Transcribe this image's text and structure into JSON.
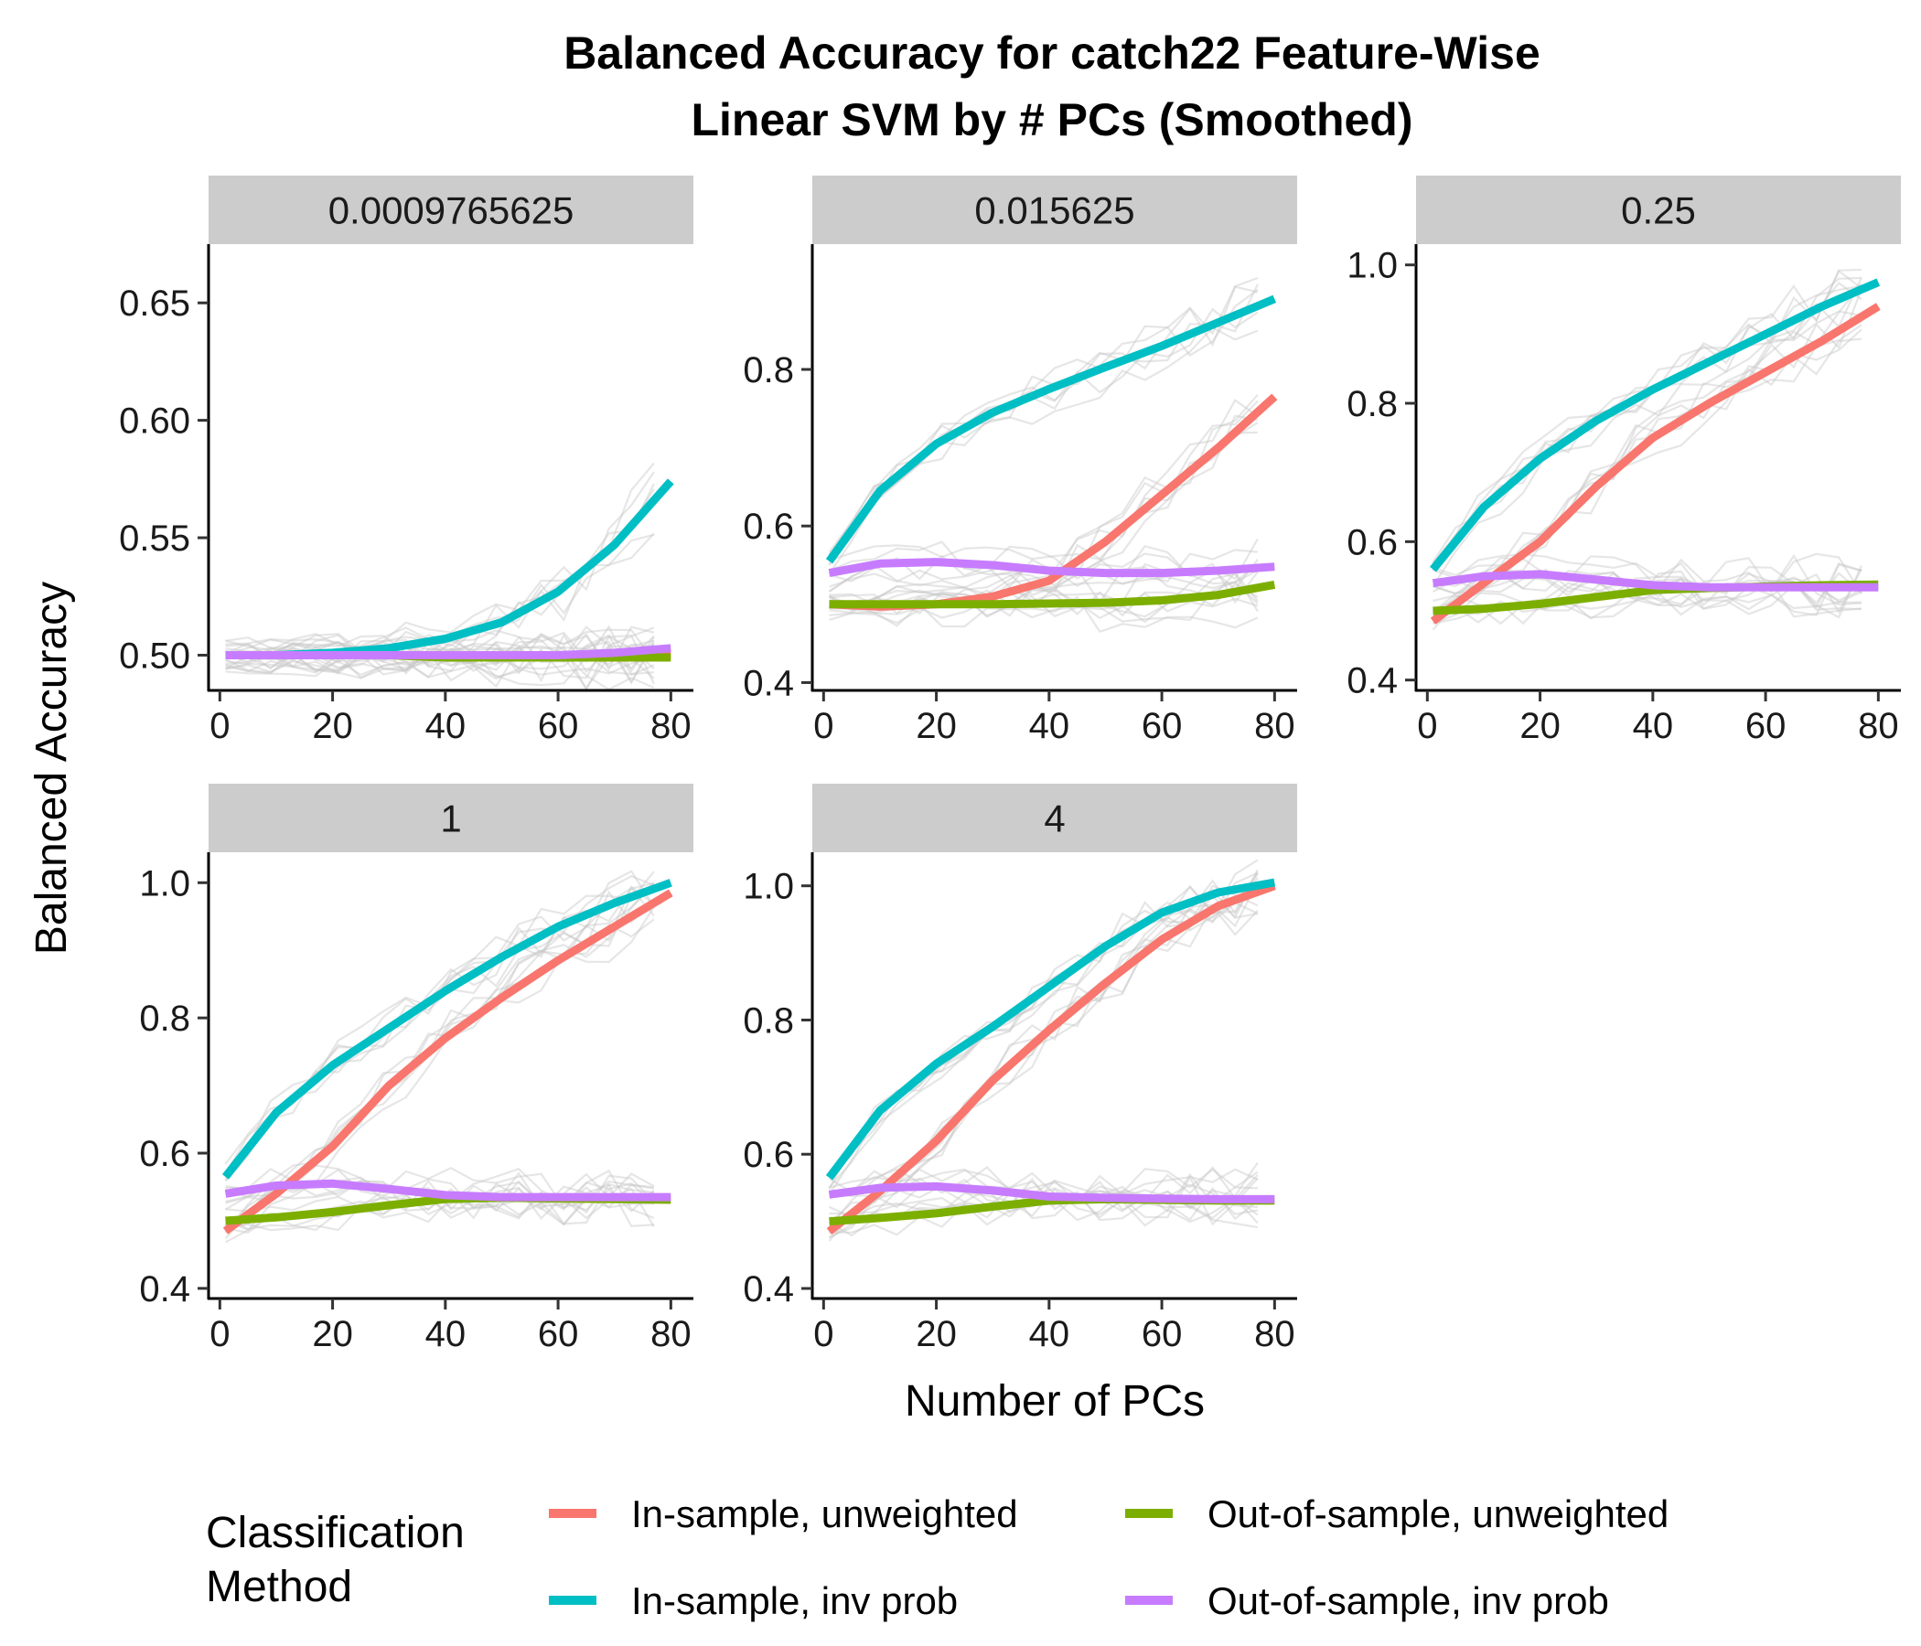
{
  "chart_data": {
    "type": "line",
    "title": "Balanced Accuracy for catch22 Feature-Wise",
    "subtitle": "Linear SVM by # PCs (Smoothed)",
    "xlabel": "Number of PCs",
    "ylabel": "Balanced Accuracy",
    "x_ticks": [
      0,
      20,
      40,
      60,
      80
    ],
    "xlim": [
      -2,
      84
    ],
    "legend": {
      "title_line1": "Classification",
      "title_line2": "Method",
      "placement": "bottom",
      "entries": [
        {
          "label": "In-sample, unweighted",
          "color": "#F8766D"
        },
        {
          "label": "In-sample, inv prob",
          "color": "#00BFC4"
        },
        {
          "label": "Out-of-sample, unweighted",
          "color": "#7CAE00"
        },
        {
          "label": "Out-of-sample, inv prob",
          "color": "#C77CFF"
        }
      ]
    },
    "background_lines": "light grey individual traces behind the smoothed curves",
    "facets": [
      {
        "label": "0.0009765625",
        "ylim": [
          0.485,
          0.675
        ],
        "y_ticks": [
          0.5,
          0.55,
          0.6,
          0.65
        ],
        "y_tick_labels": [
          "0.50",
          "0.55",
          "0.60",
          "0.65"
        ],
        "series": [
          {
            "name": "In-sample, unweighted",
            "x": [
              1,
              10,
              20,
              30,
              40,
              50,
              60,
              70,
              80
            ],
            "values": [
              0.5,
              0.5,
              0.5,
              0.5,
              0.5,
              0.5,
              0.5,
              0.5,
              0.5
            ]
          },
          {
            "name": "In-sample, inv prob",
            "x": [
              1,
              10,
              20,
              30,
              40,
              50,
              60,
              70,
              80
            ],
            "values": [
              0.5,
              0.5,
              0.501,
              0.503,
              0.507,
              0.514,
              0.527,
              0.547,
              0.574
            ]
          },
          {
            "name": "Out-of-sample, unweighted",
            "x": [
              1,
              10,
              20,
              30,
              40,
              50,
              60,
              70,
              80
            ],
            "values": [
              0.5,
              0.5,
              0.5,
              0.5,
              0.499,
              0.499,
              0.499,
              0.499,
              0.499
            ]
          },
          {
            "name": "Out-of-sample, inv prob",
            "x": [
              1,
              10,
              20,
              30,
              40,
              50,
              60,
              70,
              80
            ],
            "values": [
              0.5,
              0.5,
              0.5,
              0.5,
              0.5,
              0.5,
              0.5,
              0.501,
              0.503
            ]
          }
        ]
      },
      {
        "label": "0.015625",
        "ylim": [
          0.39,
          0.96
        ],
        "y_ticks": [
          0.4,
          0.6,
          0.8
        ],
        "y_tick_labels": [
          "0.4",
          "0.6",
          "0.8"
        ],
        "series": [
          {
            "name": "In-sample, unweighted",
            "x": [
              1,
              10,
              20,
              30,
              40,
              50,
              60,
              70,
              80
            ],
            "values": [
              0.5,
              0.497,
              0.5,
              0.51,
              0.53,
              0.58,
              0.64,
              0.7,
              0.765
            ]
          },
          {
            "name": "In-sample, inv prob",
            "x": [
              1,
              10,
              20,
              30,
              40,
              50,
              60,
              70,
              80
            ],
            "values": [
              0.555,
              0.645,
              0.705,
              0.745,
              0.775,
              0.803,
              0.83,
              0.86,
              0.89
            ]
          },
          {
            "name": "Out-of-sample, unweighted",
            "x": [
              1,
              10,
              20,
              30,
              40,
              50,
              60,
              70,
              80
            ],
            "values": [
              0.5,
              0.5,
              0.5,
              0.5,
              0.501,
              0.502,
              0.505,
              0.512,
              0.525
            ]
          },
          {
            "name": "Out-of-sample, inv prob",
            "x": [
              1,
              10,
              20,
              30,
              40,
              50,
              60,
              70,
              80
            ],
            "values": [
              0.54,
              0.552,
              0.554,
              0.55,
              0.543,
              0.54,
              0.54,
              0.543,
              0.548
            ]
          }
        ]
      },
      {
        "label": "0.25",
        "ylim": [
          0.385,
          1.03
        ],
        "y_ticks": [
          0.4,
          0.6,
          0.8,
          1.0
        ],
        "y_tick_labels": [
          "0.4",
          "0.6",
          "0.8",
          "1.0"
        ],
        "series": [
          {
            "name": "In-sample, unweighted",
            "x": [
              1,
              10,
              20,
              30,
              40,
              50,
              60,
              70,
              80
            ],
            "values": [
              0.485,
              0.54,
              0.6,
              0.68,
              0.75,
              0.8,
              0.845,
              0.89,
              0.94
            ]
          },
          {
            "name": "In-sample, inv prob",
            "x": [
              1,
              10,
              20,
              30,
              40,
              50,
              60,
              70,
              80
            ],
            "values": [
              0.56,
              0.65,
              0.72,
              0.775,
              0.82,
              0.86,
              0.9,
              0.94,
              0.975
            ]
          },
          {
            "name": "Out-of-sample, unweighted",
            "x": [
              1,
              10,
              20,
              30,
              40,
              50,
              60,
              70,
              80
            ],
            "values": [
              0.5,
              0.503,
              0.51,
              0.52,
              0.53,
              0.533,
              0.535,
              0.537,
              0.538
            ]
          },
          {
            "name": "Out-of-sample, inv prob",
            "x": [
              1,
              10,
              20,
              30,
              40,
              50,
              60,
              70,
              80
            ],
            "values": [
              0.54,
              0.55,
              0.553,
              0.545,
              0.537,
              0.534,
              0.534,
              0.534,
              0.534
            ]
          }
        ]
      },
      {
        "label": "1",
        "ylim": [
          0.385,
          1.045
        ],
        "y_ticks": [
          0.4,
          0.6,
          0.8,
          1.0
        ],
        "y_tick_labels": [
          "0.4",
          "0.6",
          "0.8",
          "1.0"
        ],
        "series": [
          {
            "name": "In-sample, unweighted",
            "x": [
              1,
              10,
              20,
              30,
              40,
              50,
              60,
              70,
              80
            ],
            "values": [
              0.485,
              0.54,
              0.61,
              0.7,
              0.77,
              0.83,
              0.885,
              0.935,
              0.985
            ]
          },
          {
            "name": "In-sample, inv prob",
            "x": [
              1,
              10,
              20,
              30,
              40,
              50,
              60,
              70,
              80
            ],
            "values": [
              0.565,
              0.66,
              0.73,
              0.785,
              0.84,
              0.89,
              0.935,
              0.97,
              1.0
            ]
          },
          {
            "name": "Out-of-sample, unweighted",
            "x": [
              1,
              10,
              20,
              30,
              40,
              50,
              60,
              70,
              80
            ],
            "values": [
              0.5,
              0.505,
              0.513,
              0.523,
              0.532,
              0.534,
              0.533,
              0.532,
              0.531
            ]
          },
          {
            "name": "Out-of-sample, inv prob",
            "x": [
              1,
              10,
              20,
              30,
              40,
              50,
              60,
              70,
              80
            ],
            "values": [
              0.54,
              0.552,
              0.555,
              0.547,
              0.538,
              0.535,
              0.535,
              0.535,
              0.535
            ]
          }
        ]
      },
      {
        "label": "4",
        "ylim": [
          0.385,
          1.05
        ],
        "y_ticks": [
          0.4,
          0.6,
          0.8,
          1.0
        ],
        "y_tick_labels": [
          "0.4",
          "0.6",
          "0.8",
          "1.0"
        ],
        "series": [
          {
            "name": "In-sample, unweighted",
            "x": [
              1,
              10,
              20,
              30,
              40,
              50,
              60,
              70,
              80
            ],
            "values": [
              0.485,
              0.545,
              0.62,
              0.71,
              0.785,
              0.855,
              0.92,
              0.97,
              1.0
            ]
          },
          {
            "name": "In-sample, inv prob",
            "x": [
              1,
              10,
              20,
              30,
              40,
              50,
              60,
              70,
              80
            ],
            "values": [
              0.565,
              0.665,
              0.735,
              0.79,
              0.85,
              0.91,
              0.96,
              0.99,
              1.005
            ]
          },
          {
            "name": "Out-of-sample, unweighted",
            "x": [
              1,
              10,
              20,
              30,
              40,
              50,
              60,
              70,
              80
            ],
            "values": [
              0.5,
              0.505,
              0.512,
              0.522,
              0.531,
              0.533,
              0.532,
              0.531,
              0.531
            ]
          },
          {
            "name": "Out-of-sample, inv prob",
            "x": [
              1,
              10,
              20,
              30,
              40,
              50,
              60,
              70,
              80
            ],
            "values": [
              0.54,
              0.55,
              0.552,
              0.546,
              0.537,
              0.535,
              0.534,
              0.533,
              0.533
            ]
          }
        ]
      }
    ]
  }
}
